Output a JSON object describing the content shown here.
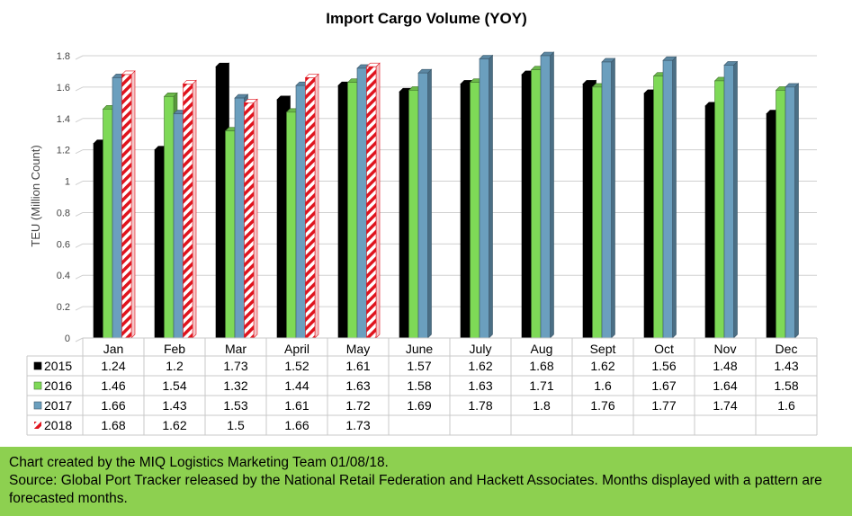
{
  "chart_data": {
    "type": "bar",
    "title": "Import Cargo Volume (YOY)",
    "ylabel": "TEU (Million Count)",
    "xlabel": "",
    "ylim": [
      0,
      1.8
    ],
    "yticks": [
      "0",
      "0.2",
      "0.4",
      "0.6",
      "0.8",
      "1",
      "1.2",
      "1.4",
      "1.6",
      "1.8"
    ],
    "grid": true,
    "categories": [
      "Jan",
      "Feb",
      "Mar",
      "April",
      "May",
      "June",
      "July",
      "Aug",
      "Sept",
      "Oct",
      "Nov",
      "Dec"
    ],
    "series": [
      {
        "name": "2015",
        "color": "#000000",
        "pattern": false,
        "values": [
          1.24,
          1.2,
          1.73,
          1.52,
          1.61,
          1.57,
          1.62,
          1.68,
          1.62,
          1.56,
          1.48,
          1.43
        ],
        "labels": [
          "1.24",
          "1.2",
          "1.73",
          "1.52",
          "1.61",
          "1.57",
          "1.62",
          "1.68",
          "1.62",
          "1.56",
          "1.48",
          "1.43"
        ]
      },
      {
        "name": "2016",
        "color": "#7ed957",
        "pattern": false,
        "values": [
          1.46,
          1.54,
          1.32,
          1.44,
          1.63,
          1.58,
          1.63,
          1.71,
          1.6,
          1.67,
          1.64,
          1.58
        ],
        "labels": [
          "1.46",
          "1.54",
          "1.32",
          "1.44",
          "1.63",
          "1.58",
          "1.63",
          "1.71",
          "1.6",
          "1.67",
          "1.64",
          "1.58"
        ]
      },
      {
        "name": "2017",
        "color": "#6b9fbe",
        "pattern": false,
        "values": [
          1.66,
          1.43,
          1.53,
          1.61,
          1.72,
          1.69,
          1.78,
          1.8,
          1.76,
          1.77,
          1.74,
          1.6
        ],
        "labels": [
          "1.66",
          "1.43",
          "1.53",
          "1.61",
          "1.72",
          "1.69",
          "1.78",
          "1.8",
          "1.76",
          "1.77",
          "1.74",
          "1.6"
        ]
      },
      {
        "name": "2018",
        "color": "#e0141e",
        "pattern": true,
        "values": [
          1.68,
          1.62,
          1.5,
          1.66,
          1.73,
          null,
          null,
          null,
          null,
          null,
          null,
          null
        ],
        "labels": [
          "1.68",
          "1.62",
          "1.5",
          "1.66",
          "1.73",
          "",
          "",
          "",
          "",
          "",
          "",
          ""
        ]
      }
    ],
    "legend_placement": "data-table"
  },
  "footer": {
    "line1": "Chart created by the MIQ Logistics Marketing Team 01/08/18.",
    "line2": "Source: Global Port Tracker released by the National Retail Federation and Hackett Associates. Months displayed with a pattern are forecasted months."
  }
}
